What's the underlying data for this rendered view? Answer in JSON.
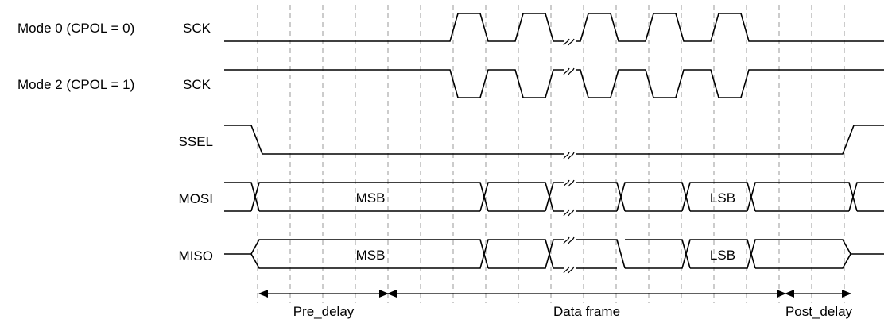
{
  "signals": {
    "mode0_label": "Mode 0 (CPOL = 0)",
    "mode2_label": "Mode 2 (CPOL = 1)",
    "sck0": "SCK",
    "sck2": "SCK",
    "ssel": "SSEL",
    "mosi": "MOSI",
    "miso": "MISO"
  },
  "data_cells": {
    "mosi_msb": "MSB",
    "mosi_lsb": "LSB",
    "miso_msb": "MSB",
    "miso_lsb": "LSB"
  },
  "intervals": {
    "pre_delay": "Pre_delay",
    "data_frame": "Data frame",
    "post_delay": "Post_delay"
  }
}
